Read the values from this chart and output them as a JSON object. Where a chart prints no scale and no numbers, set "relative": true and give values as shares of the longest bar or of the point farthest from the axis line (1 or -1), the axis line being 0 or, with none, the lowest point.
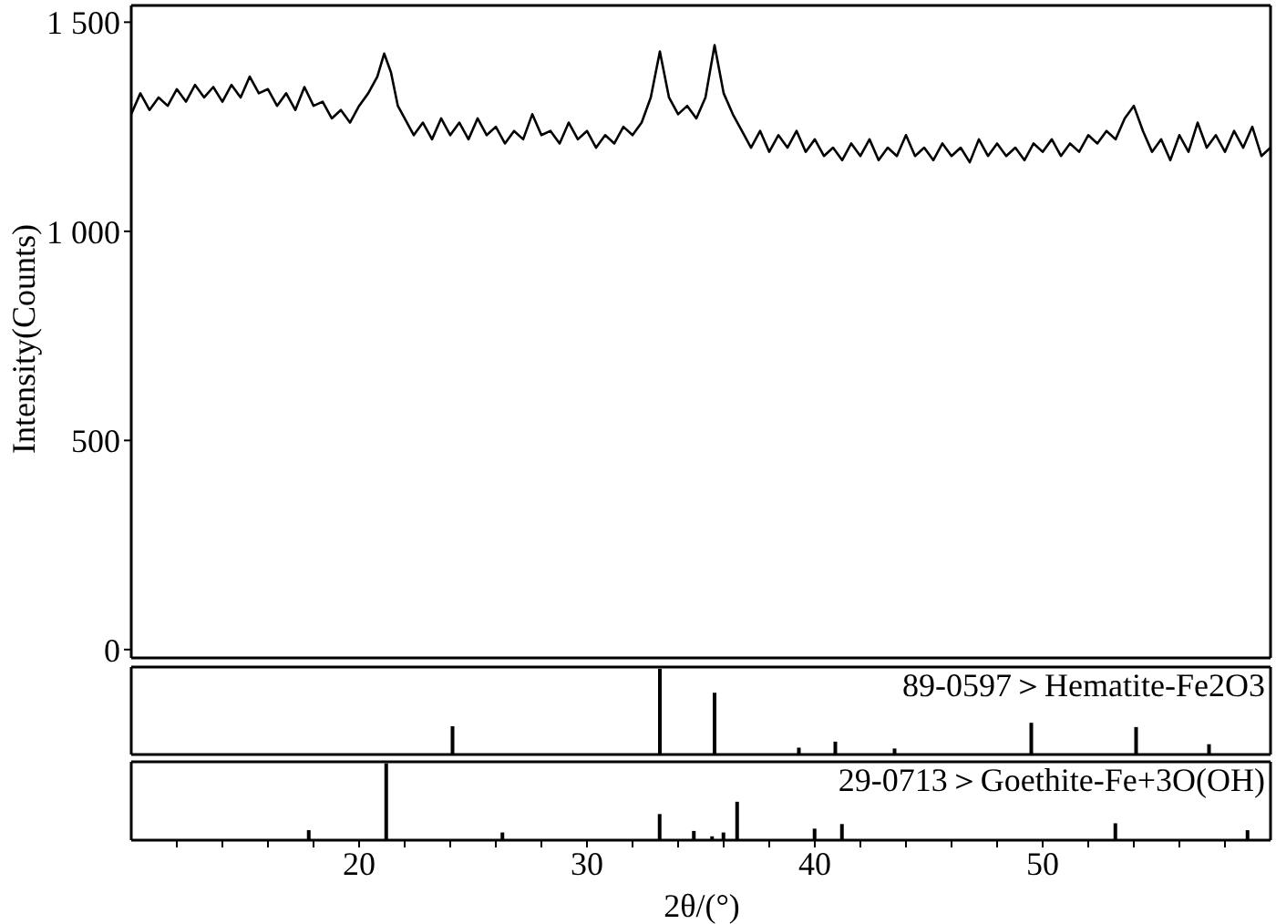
{
  "chart_data": [
    {
      "type": "line",
      "ylabel": "Intensity(Counts)",
      "xlim": [
        10,
        60
      ],
      "ylim": [
        -20,
        1540
      ],
      "yticks": [
        0,
        500,
        {
          "value": 1000,
          "label": "1 000"
        },
        {
          "value": 1500,
          "label": "1 500"
        }
      ],
      "tick_labels": "y",
      "marker": "none",
      "series": [
        {
          "color": "#000000",
          "x": [
            10,
            10.4,
            10.8,
            11.2,
            11.6,
            12,
            12.4,
            12.8,
            13.2,
            13.6,
            14,
            14.4,
            14.8,
            15.2,
            15.6,
            16,
            16.4,
            16.8,
            17.2,
            17.6,
            18,
            18.4,
            18.8,
            19.2,
            19.6,
            20,
            20.4,
            20.8,
            21.1,
            21.4,
            21.7,
            22,
            22.4,
            22.8,
            23.2,
            23.6,
            24,
            24.4,
            24.8,
            25.2,
            25.6,
            26,
            26.4,
            26.8,
            27.2,
            27.6,
            28,
            28.4,
            28.8,
            29.2,
            29.6,
            30,
            30.4,
            30.8,
            31.2,
            31.6,
            32,
            32.4,
            32.8,
            33.2,
            33.6,
            34,
            34.4,
            34.8,
            35.2,
            35.6,
            36,
            36.4,
            36.8,
            37.2,
            37.6,
            38,
            38.4,
            38.8,
            39.2,
            39.6,
            40,
            40.4,
            40.8,
            41.2,
            41.6,
            42,
            42.4,
            42.8,
            43.2,
            43.6,
            44,
            44.4,
            44.8,
            45.2,
            45.6,
            46,
            46.4,
            46.8,
            47.2,
            47.6,
            48,
            48.4,
            48.8,
            49.2,
            49.6,
            50,
            50.4,
            50.8,
            51.2,
            51.6,
            52,
            52.4,
            52.8,
            53.2,
            53.6,
            54,
            54.4,
            54.8,
            55.2,
            55.6,
            56,
            56.4,
            56.8,
            57.2,
            57.6,
            58,
            58.4,
            58.8,
            59.2,
            59.6,
            60
          ],
          "values": [
            1280,
            1330,
            1290,
            1320,
            1300,
            1340,
            1310,
            1350,
            1320,
            1345,
            1310,
            1350,
            1320,
            1370,
            1330,
            1340,
            1300,
            1330,
            1290,
            1345,
            1300,
            1310,
            1270,
            1290,
            1260,
            1300,
            1330,
            1370,
            1425,
            1380,
            1300,
            1270,
            1230,
            1260,
            1220,
            1270,
            1230,
            1260,
            1220,
            1270,
            1230,
            1250,
            1210,
            1240,
            1220,
            1280,
            1230,
            1240,
            1210,
            1260,
            1220,
            1240,
            1200,
            1230,
            1210,
            1250,
            1230,
            1260,
            1320,
            1430,
            1320,
            1280,
            1300,
            1270,
            1320,
            1445,
            1330,
            1280,
            1240,
            1200,
            1240,
            1190,
            1230,
            1200,
            1240,
            1190,
            1220,
            1180,
            1200,
            1170,
            1210,
            1180,
            1220,
            1170,
            1200,
            1180,
            1230,
            1180,
            1200,
            1170,
            1210,
            1180,
            1200,
            1165,
            1220,
            1180,
            1210,
            1180,
            1200,
            1170,
            1210,
            1190,
            1220,
            1180,
            1210,
            1190,
            1230,
            1210,
            1240,
            1220,
            1270,
            1300,
            1240,
            1190,
            1220,
            1170,
            1230,
            1190,
            1260,
            1200,
            1230,
            1190,
            1240,
            1200,
            1250,
            1180,
            1200
          ]
        }
      ]
    },
    {
      "type": "bar",
      "relative": true,
      "xlim": [
        10,
        60
      ],
      "tick_labels": false,
      "annotations": [
        "89-0597＞Hematite-Fe2O3"
      ],
      "series": [
        {
          "color": "#000000",
          "x": [
            24.1,
            33.2,
            35.6,
            39.3,
            40.9,
            43.5,
            49.5,
            54.1,
            57.3
          ],
          "values": [
            0.33,
            1,
            0.72,
            0.08,
            0.15,
            0.07,
            0.37,
            0.32,
            0.12
          ]
        }
      ]
    },
    {
      "type": "bar",
      "relative": true,
      "xlim": [
        10,
        60
      ],
      "tick_labels": "x",
      "xlabel": "2θ/(°)",
      "xticks": [
        {
          "value": 12,
          "label": null
        },
        {
          "value": 14,
          "label": null
        },
        {
          "value": 16,
          "label": null
        },
        {
          "value": 18,
          "label": null
        },
        20,
        {
          "value": 22,
          "label": null
        },
        {
          "value": 24,
          "label": null
        },
        {
          "value": 26,
          "label": null
        },
        {
          "value": 28,
          "label": null
        },
        30,
        {
          "value": 32,
          "label": null
        },
        {
          "value": 34,
          "label": null
        },
        {
          "value": 36,
          "label": null
        },
        {
          "value": 38,
          "label": null
        },
        40,
        {
          "value": 42,
          "label": null
        },
        {
          "value": 44,
          "label": null
        },
        {
          "value": 46,
          "label": null
        },
        {
          "value": 48,
          "label": null
        },
        50,
        {
          "value": 52,
          "label": null
        },
        {
          "value": 54,
          "label": null
        },
        {
          "value": 56,
          "label": null
        },
        {
          "value": 58,
          "label": null
        }
      ],
      "annotations": [
        "29-0713＞Goethite-Fe+3O(OH)"
      ],
      "series": [
        {
          "color": "#000000",
          "x": [
            17.8,
            21.2,
            26.3,
            33.2,
            34.7,
            35.5,
            36.0,
            36.6,
            40.0,
            41.2,
            53.2,
            59.0
          ],
          "values": [
            0.13,
            1,
            0.1,
            0.34,
            0.12,
            0.05,
            0.1,
            0.5,
            0.15,
            0.21,
            0.22,
            0.13
          ]
        }
      ]
    }
  ]
}
